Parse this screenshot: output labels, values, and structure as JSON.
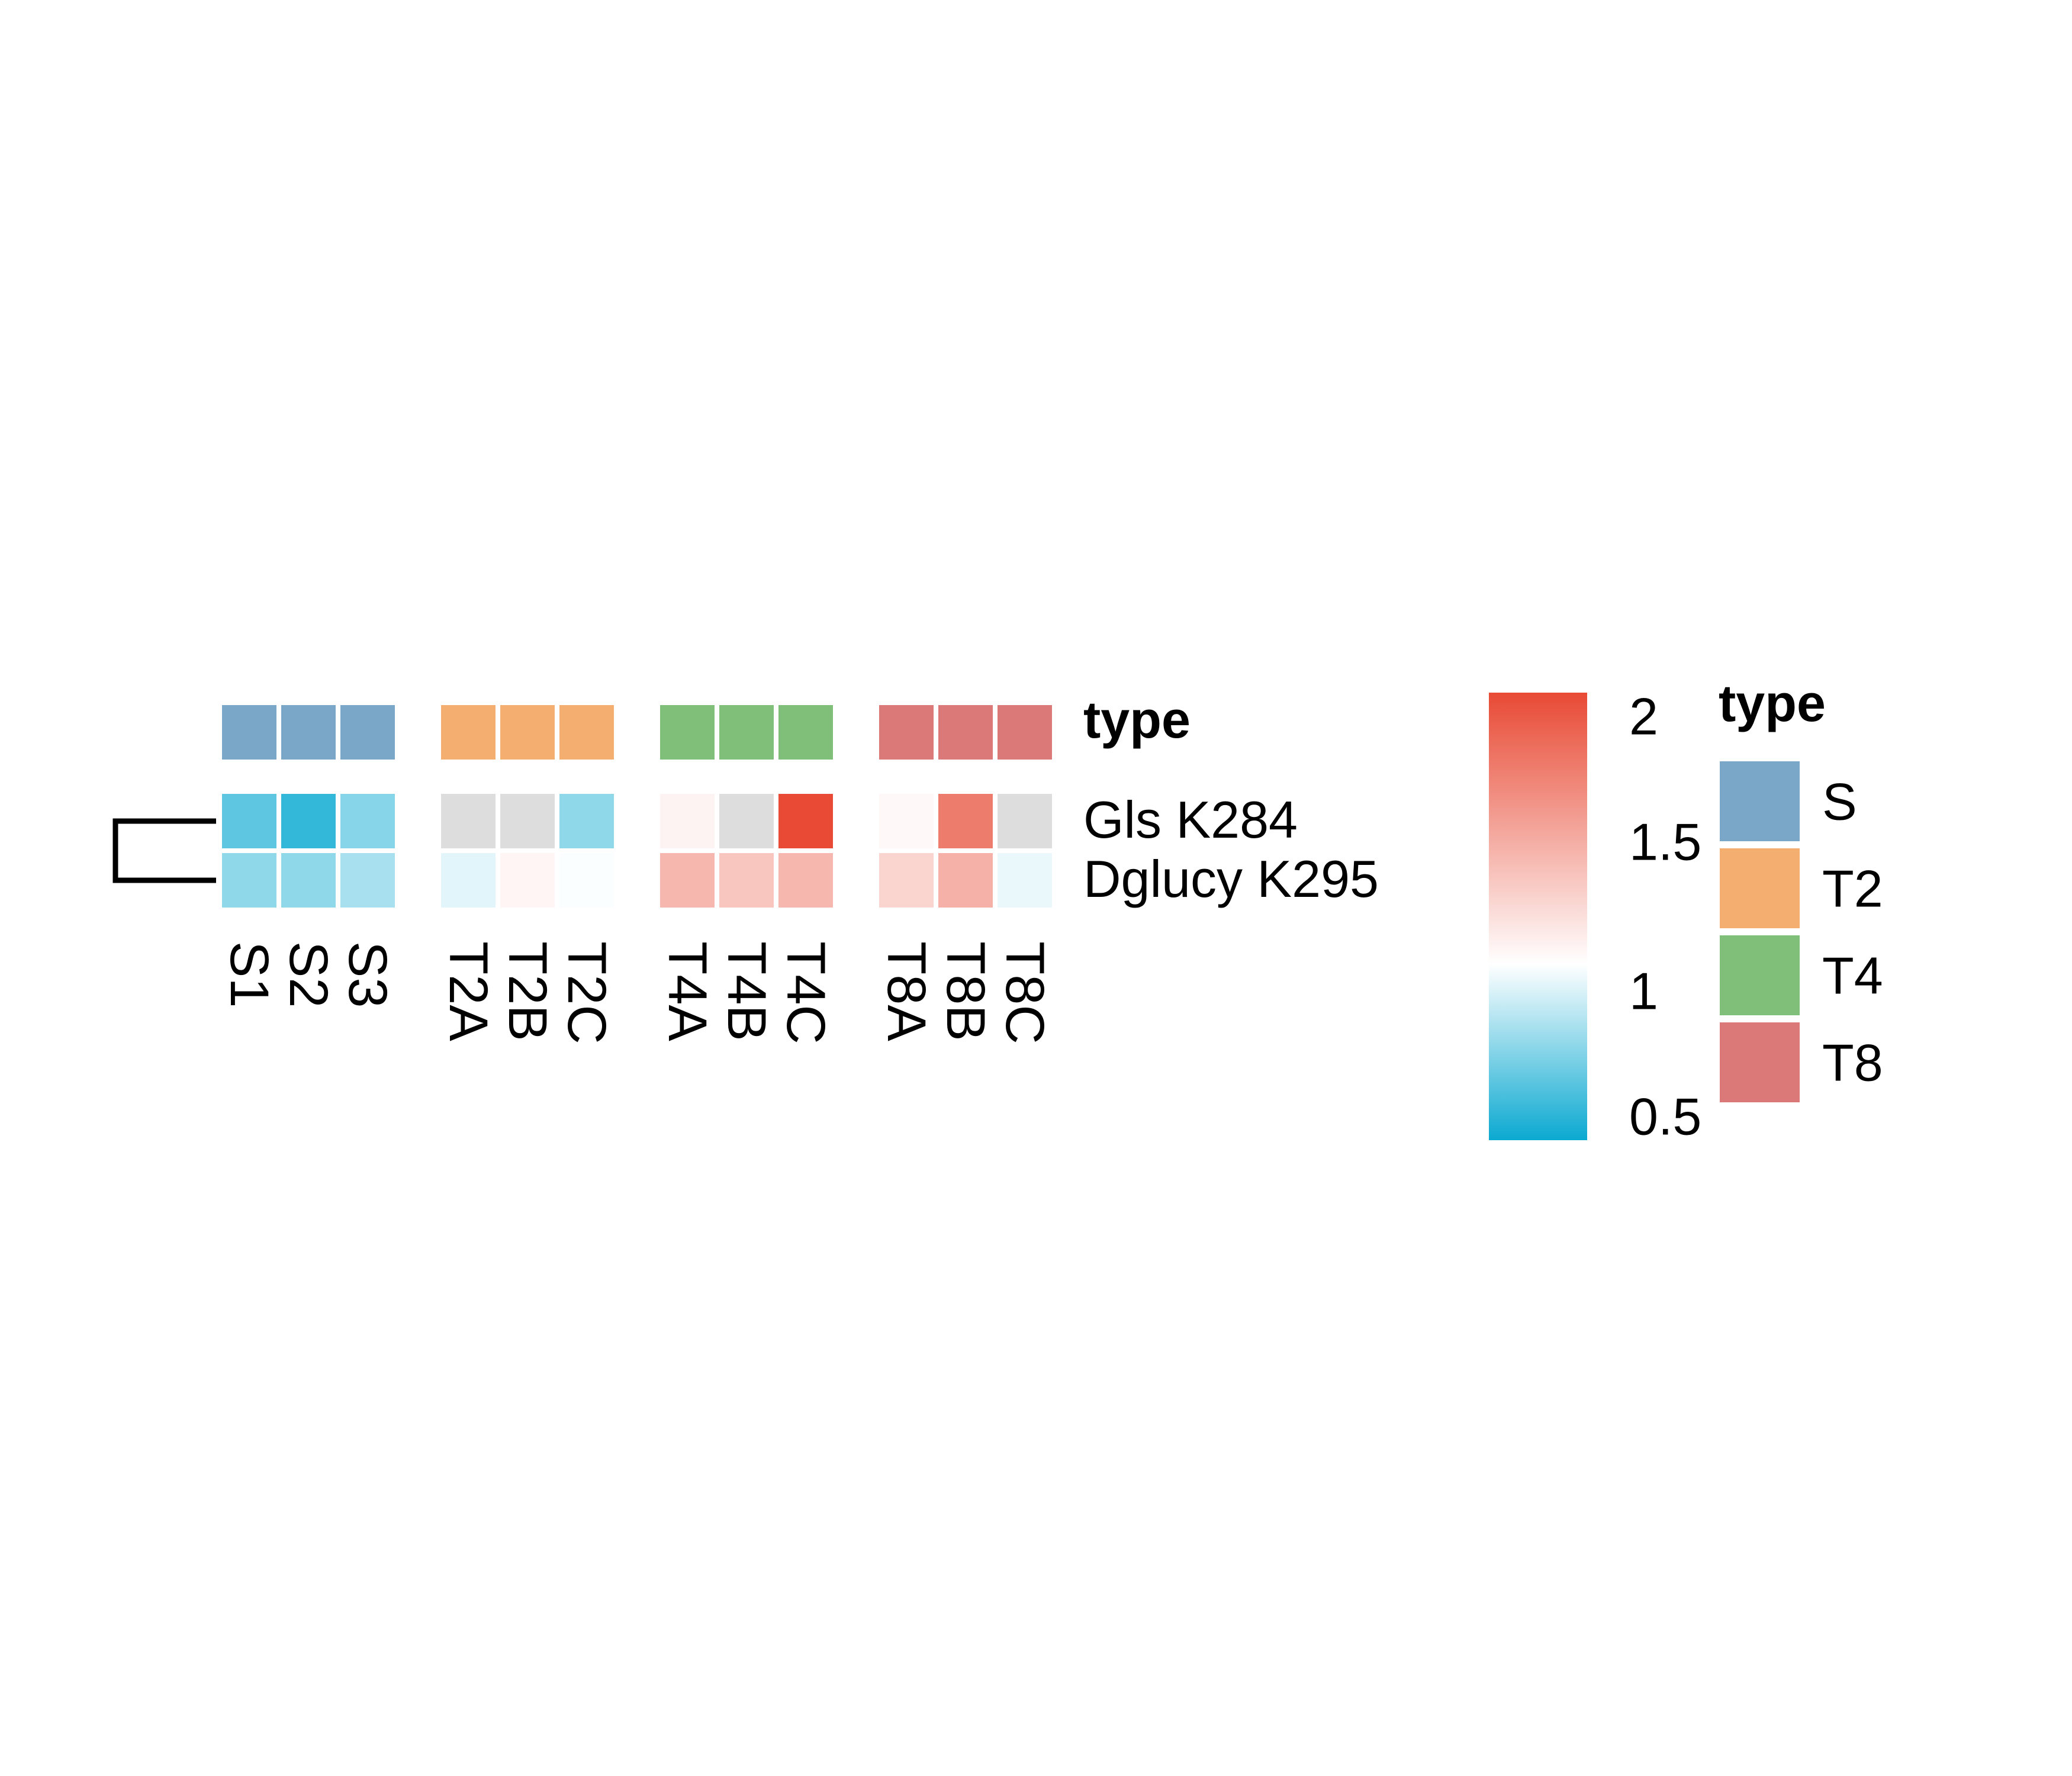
{
  "chart_data": {
    "type": "heatmap",
    "columns": [
      "S1",
      "S2",
      "S3",
      "T2A",
      "T2B",
      "T2C",
      "T4A",
      "T4B",
      "T4C",
      "T8A",
      "T8B",
      "T8C"
    ],
    "column_groups": [
      {
        "name": "S",
        "columns": [
          "S1",
          "S2",
          "S3"
        ]
      },
      {
        "name": "T2",
        "columns": [
          "T2A",
          "T2B",
          "T2C"
        ]
      },
      {
        "name": "T4",
        "columns": [
          "T4A",
          "T4B",
          "T4C"
        ]
      },
      {
        "name": "T8",
        "columns": [
          "T8A",
          "T8B",
          "T8C"
        ]
      }
    ],
    "rows": [
      "Gls K284",
      "Dglucy K295"
    ],
    "values": [
      [
        0.7,
        0.6,
        0.8,
        null,
        null,
        0.82,
        1.15,
        null,
        2.0,
        1.12,
        1.75,
        null
      ],
      [
        0.82,
        0.82,
        0.88,
        1.02,
        1.14,
        1.08,
        1.45,
        1.38,
        1.45,
        1.3,
        1.48,
        1.04
      ]
    ],
    "missing_color": "#DDDDDD",
    "annotation": {
      "title": "type",
      "categories": [
        "S",
        "T2",
        "T4",
        "T8"
      ],
      "colors": [
        "#7AA6C8",
        "#F4AE70",
        "#7FBF7A",
        "#DB7878"
      ]
    },
    "color_scale": {
      "min": 0.5,
      "mid": 1.09,
      "max": 2.0,
      "low_color": "#0BA9D1",
      "mid_color": "#FFFFFF",
      "high_color": "#E84A35",
      "ticks": [
        "2",
        "1.5",
        "1",
        "0.5"
      ],
      "tick_values": [
        2.0,
        1.5,
        1.0,
        0.5
      ]
    },
    "row_dendrogram": true
  }
}
